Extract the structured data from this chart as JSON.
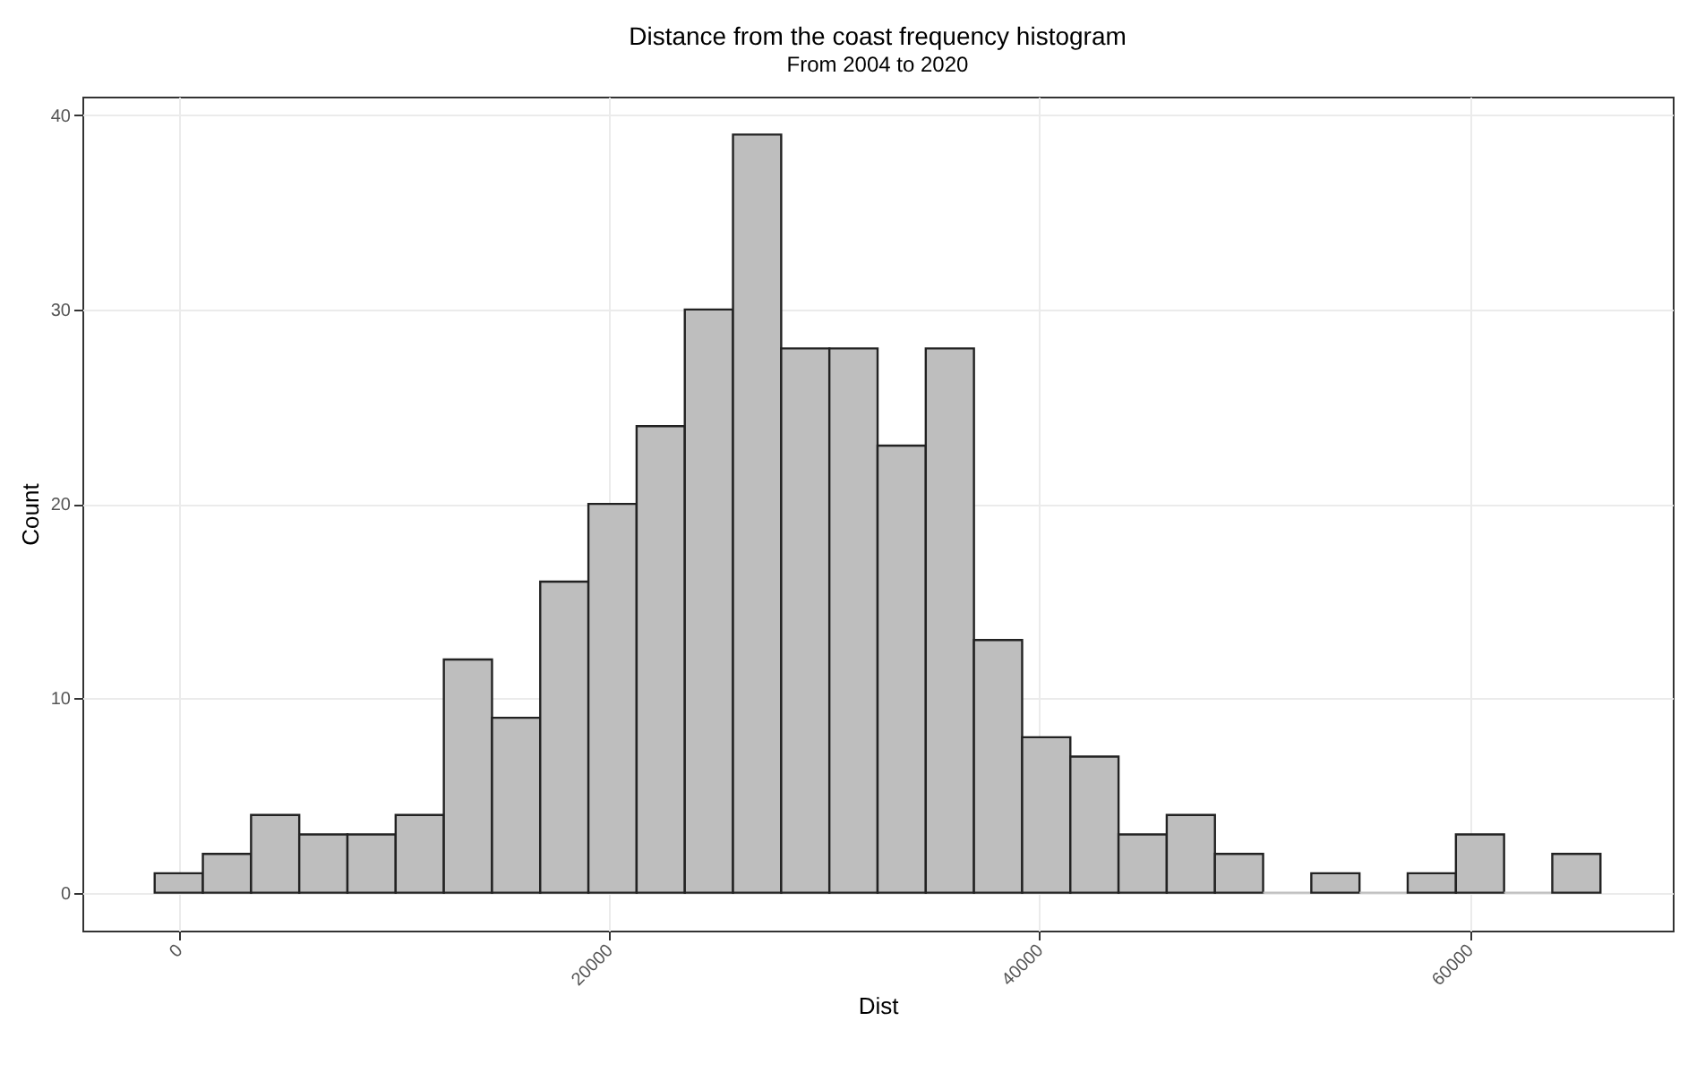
{
  "chart_data": {
    "type": "histogram",
    "title": "Distance from the coast frequency histogram",
    "subtitle": "From 2004 to 2020",
    "xlabel": "Dist",
    "ylabel": "Count",
    "bins": [
      -1120,
      1120,
      3360,
      5600,
      7840,
      10080,
      12320,
      14560,
      16800,
      19040,
      21280,
      23520,
      25760,
      28000,
      30240,
      32480,
      34720,
      36960,
      39200,
      41440,
      43680,
      45920,
      48160,
      50400,
      52640,
      54880,
      57120,
      59360,
      61600,
      63840,
      66080
    ],
    "values": [
      1,
      2,
      4,
      3,
      3,
      4,
      12,
      9,
      16,
      20,
      24,
      30,
      39,
      28,
      28,
      23,
      28,
      13,
      8,
      7,
      3,
      4,
      2,
      0,
      1,
      0,
      1,
      3,
      0,
      2
    ],
    "color": "#bebebe",
    "xlim": [
      -4480,
      69440
    ],
    "xticks": [
      0,
      20000,
      40000,
      60000
    ],
    "ylim": [
      -1.95,
      40.95
    ],
    "yticks": [
      0,
      10,
      20,
      30,
      40
    ],
    "grid": true
  }
}
